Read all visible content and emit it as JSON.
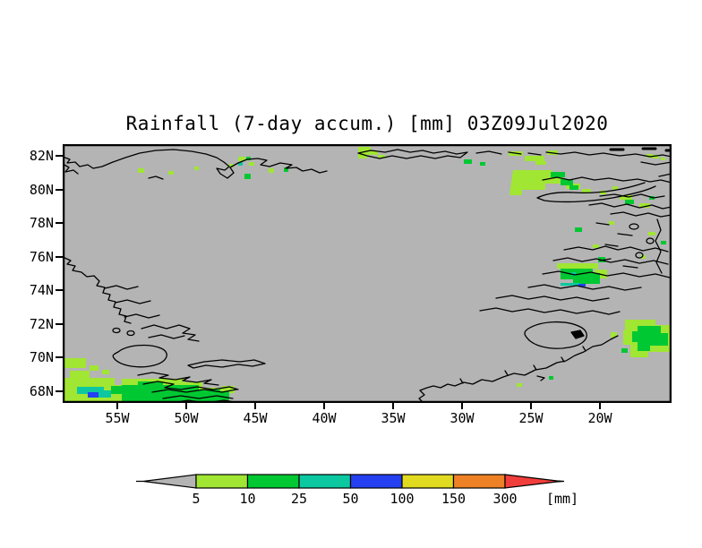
{
  "title": "Rainfall (7-day accum.) [mm] 03Z09Jul2020",
  "map": {
    "background_color": "#b4b4b4",
    "coastline_color": "#000000",
    "lat_tick_labels": [
      "82N",
      "80N",
      "78N",
      "76N",
      "74N",
      "72N",
      "70N",
      "68N"
    ],
    "lon_tick_labels": [
      "55W",
      "50W",
      "45W",
      "40W",
      "35W",
      "30W",
      "25W",
      "20W"
    ]
  },
  "colorbar": {
    "units_label": "[mm]",
    "boundary_labels": [
      "5",
      "10",
      "25",
      "50",
      "100",
      "150",
      "300"
    ],
    "below_min_color": "#b4b4b4",
    "segment_colors": [
      "#a0e632",
      "#00c832",
      "#0cc8a0",
      "#2440f0",
      "#e0da20",
      "#ee8126"
    ],
    "above_max_color": "#f23d3d",
    "outline_color": "#000000"
  }
}
